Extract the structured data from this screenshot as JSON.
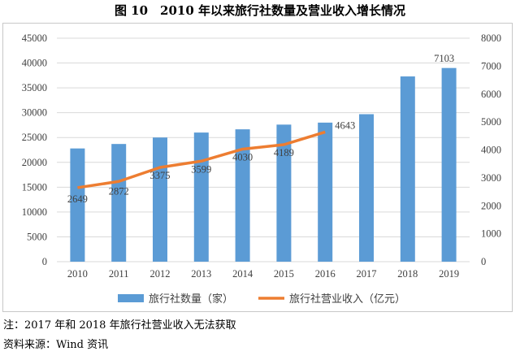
{
  "title": "图 10　2010 年以来旅行社数量及营业收入增长情况",
  "notes": {
    "note": "注：2017 年和 2018 年旅行社营业收入无法获取",
    "source": "资料来源：Wind 资讯"
  },
  "colors": {
    "bar": "#5b9bd5",
    "line": "#ed7d31",
    "grid": "#d9d9d9"
  },
  "chart_data": {
    "type": "bar",
    "categories": [
      "2010",
      "2011",
      "2012",
      "2013",
      "2014",
      "2015",
      "2016",
      "2017",
      "2018",
      "2019"
    ],
    "series": [
      {
        "name": "旅行社数量（家）",
        "type": "bar",
        "axis": "left",
        "values": [
          22800,
          23700,
          25000,
          26000,
          26650,
          27600,
          28000,
          29700,
          37300,
          39000
        ]
      },
      {
        "name": "旅行社营业收入（亿元）",
        "type": "line",
        "axis": "right",
        "values": [
          2649,
          2872,
          3375,
          3599,
          4030,
          4189,
          4643,
          null,
          null,
          7103
        ],
        "labels": [
          "2649",
          "2872",
          "3375",
          "3599",
          "4030",
          "4189",
          "4643",
          "",
          "",
          "7103"
        ]
      }
    ],
    "y_left": {
      "min": 0,
      "max": 45000,
      "ticks": [
        "0",
        "5000",
        "10000",
        "15000",
        "20000",
        "25000",
        "30000",
        "35000",
        "40000",
        "45000"
      ]
    },
    "y_right": {
      "min": 0,
      "max": 8000,
      "ticks": [
        "0",
        "1000",
        "2000",
        "3000",
        "4000",
        "5000",
        "6000",
        "7000",
        "8000"
      ]
    },
    "legend_position": "bottom",
    "grid": true
  }
}
